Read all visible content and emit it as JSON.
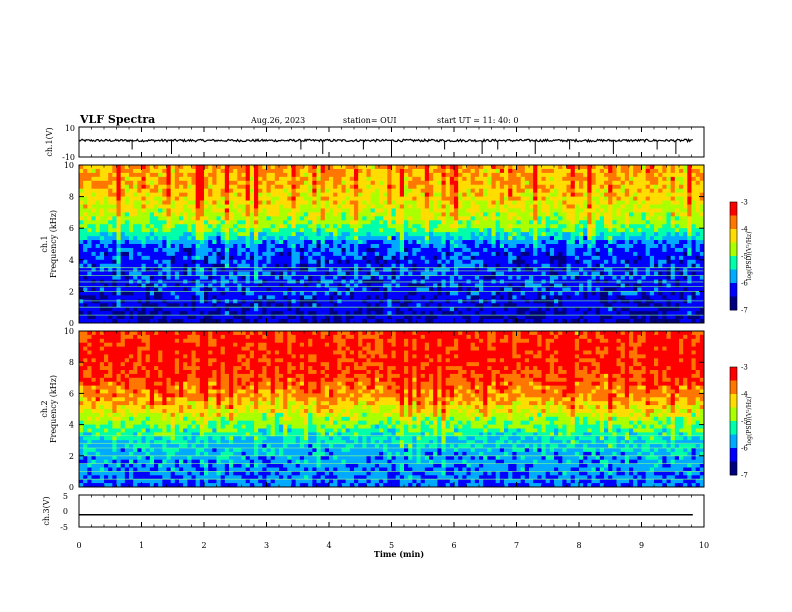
{
  "header": {
    "title": "VLF Spectra",
    "date": "Aug.26, 2023",
    "station": "station= OUI",
    "start": "start  UT =   11: 40: 0"
  },
  "colors": {
    "colormap": [
      "#00007f",
      "#0000ff",
      "#00aaff",
      "#00ffaa",
      "#aaff00",
      "#ffdd00",
      "#ff7700",
      "#ff0000"
    ],
    "waveform": "#000000",
    "axes": "#000000"
  },
  "chart_data": [
    {
      "id": "ch1_waveform",
      "type": "line",
      "ylabel": "ch.1(V)",
      "ylim": [
        -10,
        10
      ],
      "yticks": [
        "10",
        "-10"
      ],
      "x": [
        0,
        0.5,
        1,
        1.5,
        2,
        2.5,
        3,
        3.5,
        4,
        4.5,
        5,
        5.5,
        6,
        6.5,
        7,
        7.5,
        8,
        8.5,
        9,
        9.5,
        9.82
      ],
      "values": [
        1,
        0.8,
        1.1,
        0.9,
        1,
        1.2,
        0.9,
        1,
        0.8,
        1.1,
        1,
        0.9,
        1.1,
        1,
        0.9,
        1.2,
        1,
        0.9,
        1,
        1.1,
        1
      ],
      "spikes_x": [
        0.85,
        1.48,
        3.55,
        3.9,
        4.55,
        5.0,
        5.85,
        6.45,
        6.7,
        7.3,
        7.85,
        8.55,
        9.25,
        9.55
      ]
    },
    {
      "id": "ch1_spectrogram",
      "type": "heatmap",
      "ylabel": "Frequency (kHz)",
      "channel_label": "ch.1",
      "ylim": [
        0,
        10
      ],
      "yticks": [
        "0",
        "2",
        "4",
        "6",
        "8",
        "10"
      ],
      "colorbar": {
        "label": "log(PSD)(V²/Hz)",
        "ticks": [
          "-3",
          "-4",
          "-5",
          "-6",
          "-7"
        ],
        "range": [
          -7,
          -3
        ]
      },
      "band_profile": [
        {
          "f": 0,
          "level": -6.5
        },
        {
          "f": 1,
          "level": -6.4
        },
        {
          "f": 2,
          "level": -6.3
        },
        {
          "f": 3,
          "level": -6.2
        },
        {
          "f": 4,
          "level": -6.3
        },
        {
          "f": 5,
          "level": -6.0
        },
        {
          "f": 5.5,
          "level": -5.5
        },
        {
          "f": 6,
          "level": -5.0
        },
        {
          "f": 7,
          "level": -4.6
        },
        {
          "f": 8,
          "level": -4.3
        },
        {
          "f": 9,
          "level": -4.1
        },
        {
          "f": 10,
          "level": -4.0
        }
      ],
      "lines_khz": [
        0.5,
        1.0,
        1.4,
        2.0,
        2.3,
        2.6,
        3.0,
        3.3,
        3.5
      ]
    },
    {
      "id": "ch2_spectrogram",
      "type": "heatmap",
      "ylabel": "Frequency (kHz)",
      "channel_label": "ch.2",
      "ylim": [
        0,
        10
      ],
      "yticks": [
        "0",
        "2",
        "4",
        "6",
        "8",
        "10"
      ],
      "colorbar": {
        "label": "log(PSD)(V²/Hz)",
        "ticks": [
          "-3",
          "-4",
          "-5",
          "-6",
          "-7"
        ],
        "range": [
          -7,
          -3
        ]
      },
      "band_profile": [
        {
          "f": 0,
          "level": -6.0
        },
        {
          "f": 1,
          "level": -5.9
        },
        {
          "f": 2,
          "level": -5.8
        },
        {
          "f": 3,
          "level": -5.5
        },
        {
          "f": 4,
          "level": -5.0
        },
        {
          "f": 5,
          "level": -4.4
        },
        {
          "f": 6,
          "level": -3.9
        },
        {
          "f": 7,
          "level": -3.6
        },
        {
          "f": 8,
          "level": -3.4
        },
        {
          "f": 9,
          "level": -3.4
        },
        {
          "f": 10,
          "level": -3.5
        }
      ],
      "lines_khz": [
        0.5,
        1.0,
        1.5,
        2.0,
        2.5,
        2.8,
        3.3
      ]
    },
    {
      "id": "ch3_waveform",
      "type": "line",
      "ylabel": "ch.3(V)",
      "ylim": [
        -5,
        5
      ],
      "yticks": [
        "5",
        "0",
        "-5"
      ],
      "x": [
        0,
        9.82
      ],
      "values": [
        -1.2,
        -1.2
      ]
    }
  ],
  "xaxis": {
    "label": "Time  (min)",
    "range": [
      0,
      10
    ],
    "ticks": [
      "0",
      "1",
      "2",
      "3",
      "4",
      "5",
      "6",
      "7",
      "8",
      "9",
      "10"
    ]
  }
}
